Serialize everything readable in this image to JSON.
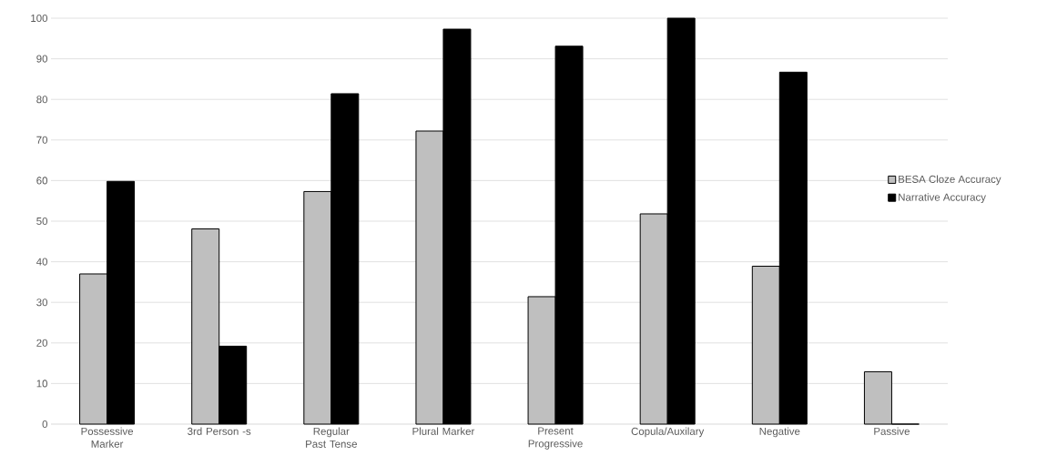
{
  "chart_data": {
    "type": "bar",
    "categories": [
      "Possessive Marker",
      "3rd Person -s",
      "Regular Past Tense",
      "Plural Marker",
      "Present Progressive",
      "Copula/Auxilary",
      "Negative",
      "Passive"
    ],
    "series": [
      {
        "name": "BESA Cloze Accuracy",
        "color": "#bfbfbf",
        "values": [
          37,
          48.1,
          57.3,
          72.2,
          31.4,
          51.8,
          38.9,
          12.9
        ]
      },
      {
        "name": "Narrative Accuracy",
        "color": "#000000",
        "values": [
          59.8,
          19.2,
          81.4,
          97.3,
          93.1,
          100,
          86.7,
          0
        ]
      }
    ],
    "ylim": [
      0,
      100
    ],
    "yticks": [
      0,
      10,
      20,
      30,
      40,
      50,
      60,
      70,
      80,
      90,
      100
    ],
    "grid": "y",
    "legend": "right"
  }
}
